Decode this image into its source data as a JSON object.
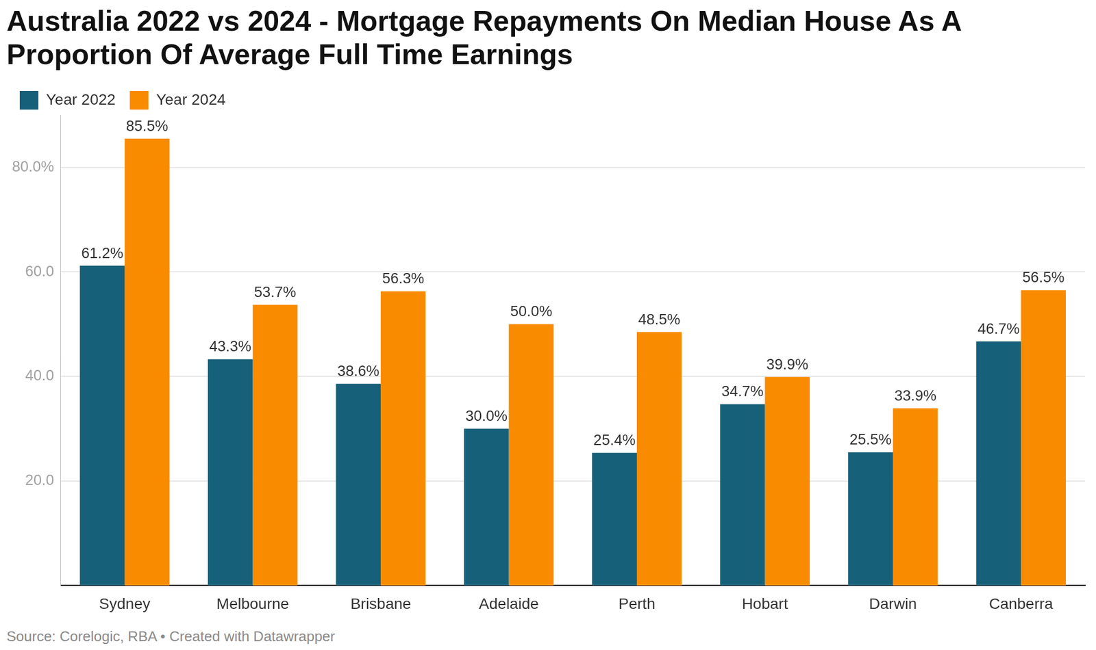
{
  "chart_data": {
    "type": "bar",
    "title": "Australia 2022 vs 2024 - Mortgage Repayments On Median House As A Proportion Of Average Full Time Earnings",
    "source": "Source: Corelogic, RBA • Created with Datawrapper",
    "categories": [
      "Sydney",
      "Melbourne",
      "Brisbane",
      "Adelaide",
      "Perth",
      "Hobart",
      "Darwin",
      "Canberra"
    ],
    "series": [
      {
        "name": "Year 2022",
        "color": "#176079",
        "values": [
          61.2,
          43.3,
          38.6,
          30.0,
          25.4,
          34.7,
          25.5,
          46.7
        ],
        "value_labels": [
          "61.2%",
          "43.3%",
          "38.6%",
          "30.0%",
          "25.4%",
          "34.7%",
          "25.5%",
          "46.7%"
        ]
      },
      {
        "name": "Year 2024",
        "color": "#f98b00",
        "values": [
          85.5,
          53.7,
          56.3,
          50.0,
          48.5,
          39.9,
          33.9,
          56.5
        ],
        "value_labels": [
          "85.5%",
          "53.7%",
          "56.3%",
          "50.0%",
          "48.5%",
          "39.9%",
          "33.9%",
          "56.5%"
        ]
      }
    ],
    "ylim": [
      0,
      90
    ],
    "yticks": [
      {
        "value": 20,
        "label": "20.0"
      },
      {
        "value": 40,
        "label": "40.0"
      },
      {
        "value": 60,
        "label": "60.0"
      },
      {
        "value": 80,
        "label": "80.0%"
      }
    ],
    "grid": true,
    "legend": "top-left",
    "data_labels": true
  }
}
